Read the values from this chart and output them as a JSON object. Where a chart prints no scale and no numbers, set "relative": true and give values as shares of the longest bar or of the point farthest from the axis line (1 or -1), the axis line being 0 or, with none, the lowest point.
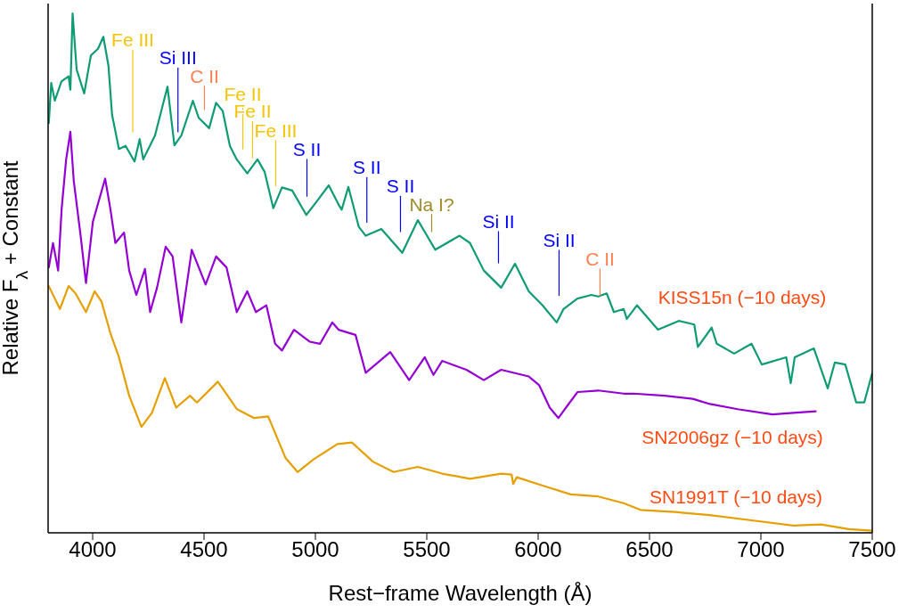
{
  "chart_data": {
    "type": "line",
    "relative": true,
    "xlabel": "Rest−frame Wavelength (Å)",
    "ylabel": "Relative F$_{λ}$ + Constant",
    "xlim": [
      3800,
      7500
    ],
    "xticks": [
      4000,
      4500,
      5000,
      5500,
      6000,
      6500,
      7000,
      7500
    ],
    "marker": "none",
    "line_style": "solid",
    "series": [
      {
        "name": "KISS15n (−10 days)",
        "color": "#0f9b74",
        "x": [
          3803,
          3814,
          3830,
          3860,
          3892,
          3900,
          3910,
          3928,
          3962,
          3992,
          4024,
          4048,
          4071,
          4087,
          4118,
          4148,
          4188,
          4211,
          4227,
          4280,
          4336,
          4367,
          4398,
          4450,
          4476,
          4523,
          4554,
          4584,
          4616,
          4647,
          4694,
          4740,
          4772,
          4811,
          4850,
          4896,
          4959,
          5006,
          5060,
          5104,
          5118,
          5148,
          5195,
          5226,
          5296,
          5390,
          5460,
          5538,
          5647,
          5694,
          5756,
          5834,
          5896,
          5958,
          6020,
          6083,
          6114,
          6176,
          6239,
          6270,
          6308,
          6340,
          6384,
          6398,
          6444,
          6538,
          6631,
          6701,
          6717,
          6779,
          6802,
          6880,
          6958,
          7004,
          7114,
          7134,
          7152,
          7238,
          7300,
          7332,
          7379,
          7428,
          7464,
          7500
        ],
        "values": [
          0.789,
          0.866,
          0.832,
          0.869,
          0.879,
          0.853,
          1.0,
          0.892,
          0.846,
          0.919,
          0.932,
          0.955,
          0.899,
          0.805,
          0.739,
          0.745,
          0.715,
          0.758,
          0.719,
          0.765,
          0.859,
          0.746,
          0.765,
          0.832,
          0.799,
          0.779,
          0.828,
          0.812,
          0.745,
          0.719,
          0.692,
          0.719,
          0.695,
          0.625,
          0.665,
          0.659,
          0.612,
          0.638,
          0.669,
          0.632,
          0.622,
          0.666,
          0.589,
          0.572,
          0.585,
          0.539,
          0.602,
          0.545,
          0.572,
          0.558,
          0.505,
          0.472,
          0.518,
          0.465,
          0.438,
          0.405,
          0.431,
          0.451,
          0.458,
          0.455,
          0.461,
          0.425,
          0.431,
          0.412,
          0.438,
          0.391,
          0.408,
          0.401,
          0.358,
          0.395,
          0.364,
          0.345,
          0.364,
          0.324,
          0.338,
          0.288,
          0.338,
          0.355,
          0.278,
          0.328,
          0.324,
          0.251,
          0.251,
          0.308
        ]
      },
      {
        "name": "SN2006gz (−10 days)",
        "color": "#9400d3",
        "x": [
          3803,
          3822,
          3845,
          3861,
          3881,
          3900,
          3915,
          3946,
          3970,
          4001,
          4056,
          4079,
          4102,
          4141,
          4164,
          4196,
          4235,
          4258,
          4289,
          4328,
          4359,
          4398,
          4445,
          4507,
          4554,
          4601,
          4647,
          4694,
          4733,
          4780,
          4819,
          4850,
          4904,
          4974,
          5021,
          5076,
          5104,
          5180,
          5226,
          5336,
          5421,
          5491,
          5530,
          5569,
          5678,
          5756,
          5834,
          5958,
          6005,
          6052,
          6091,
          6130,
          6177,
          6270,
          6384,
          6428,
          6569,
          6694,
          6771,
          6896,
          7052,
          7145,
          7246
        ],
        "values": [
          0.511,
          0.558,
          0.505,
          0.625,
          0.719,
          0.772,
          0.678,
          0.572,
          0.481,
          0.599,
          0.682,
          0.625,
          0.558,
          0.578,
          0.505,
          0.458,
          0.508,
          0.425,
          0.472,
          0.551,
          0.532,
          0.405,
          0.545,
          0.478,
          0.532,
          0.511,
          0.425,
          0.465,
          0.425,
          0.438,
          0.364,
          0.351,
          0.391,
          0.368,
          0.364,
          0.405,
          0.391,
          0.381,
          0.308,
          0.348,
          0.294,
          0.338,
          0.304,
          0.331,
          0.314,
          0.294,
          0.314,
          0.301,
          0.284,
          0.241,
          0.221,
          0.244,
          0.271,
          0.274,
          0.268,
          0.268,
          0.264,
          0.258,
          0.248,
          0.238,
          0.228,
          0.231,
          0.234
        ]
      },
      {
        "name": "SN1991T (−10 days)",
        "color": "#e69f00",
        "x": [
          3803,
          3853,
          3892,
          3923,
          3970,
          4009,
          4040,
          4079,
          4118,
          4164,
          4219,
          4266,
          4324,
          4375,
          4437,
          4468,
          4562,
          4648,
          4725,
          4788,
          4866,
          4920,
          4990,
          5099,
          5164,
          5258,
          5351,
          5460,
          5569,
          5694,
          5834,
          5881,
          5888,
          5904,
          6020,
          6146,
          6270,
          6384,
          6460,
          6616,
          6771,
          6958,
          7145,
          7270,
          7394,
          7500
        ],
        "values": [
          0.475,
          0.431,
          0.475,
          0.461,
          0.425,
          0.465,
          0.445,
          0.385,
          0.338,
          0.264,
          0.204,
          0.231,
          0.298,
          0.241,
          0.264,
          0.251,
          0.291,
          0.238,
          0.221,
          0.224,
          0.144,
          0.117,
          0.141,
          0.171,
          0.174,
          0.137,
          0.117,
          0.127,
          0.114,
          0.104,
          0.114,
          0.112,
          0.094,
          0.107,
          0.091,
          0.074,
          0.07,
          0.057,
          0.044,
          0.04,
          0.034,
          0.024,
          0.014,
          0.016,
          0.007,
          0.004
        ]
      },
      {
        "name": "Fe III",
        "color": "#f5c400",
        "x": [
          4180,
          4180
        ],
        "values": [
          0.929,
          0.772
        ]
      },
      {
        "name": "Si III",
        "color": "#0000ff",
        "x": [
          4383,
          4383
        ],
        "values": [
          0.895,
          0.772
        ]
      },
      {
        "name": "C II",
        "color": "#ff7f50",
        "x": [
          4502,
          4502
        ],
        "values": [
          0.86,
          0.815
        ]
      },
      {
        "name": "Fe II",
        "color": "#f5c400",
        "x": [
          4674,
          4674
        ],
        "values": [
          0.825,
          0.739
        ]
      },
      {
        "name": "Fe II",
        "color": "#f5c400",
        "x": [
          4718,
          4718
        ],
        "values": [
          0.792,
          0.722
        ]
      },
      {
        "name": "Fe III",
        "color": "#f5c400",
        "x": [
          4822,
          4822
        ],
        "values": [
          0.755,
          0.668
        ]
      },
      {
        "name": "S II",
        "color": "#0000ff",
        "x": [
          4962,
          4962
        ],
        "values": [
          0.719,
          0.648
        ]
      },
      {
        "name": "S II",
        "color": "#0000ff",
        "x": [
          5231,
          5231
        ],
        "values": [
          0.684,
          0.598
        ]
      },
      {
        "name": "S II",
        "color": "#0000ff",
        "x": [
          5382,
          5382
        ],
        "values": [
          0.648,
          0.58
        ]
      },
      {
        "name": "Na I?",
        "color": "#a08a2a",
        "x": [
          5522,
          5522
        ],
        "values": [
          0.613,
          0.58
        ]
      },
      {
        "name": "Si II",
        "color": "#0000ff",
        "x": [
          5822,
          5822
        ],
        "values": [
          0.58,
          0.52
        ]
      },
      {
        "name": "Si II",
        "color": "#0000ff",
        "x": [
          6094,
          6094
        ],
        "values": [
          0.544,
          0.457
        ]
      },
      {
        "name": "C II",
        "color": "#ff7f50",
        "x": [
          6278,
          6278
        ],
        "values": [
          0.508,
          0.457
        ]
      }
    ]
  }
}
